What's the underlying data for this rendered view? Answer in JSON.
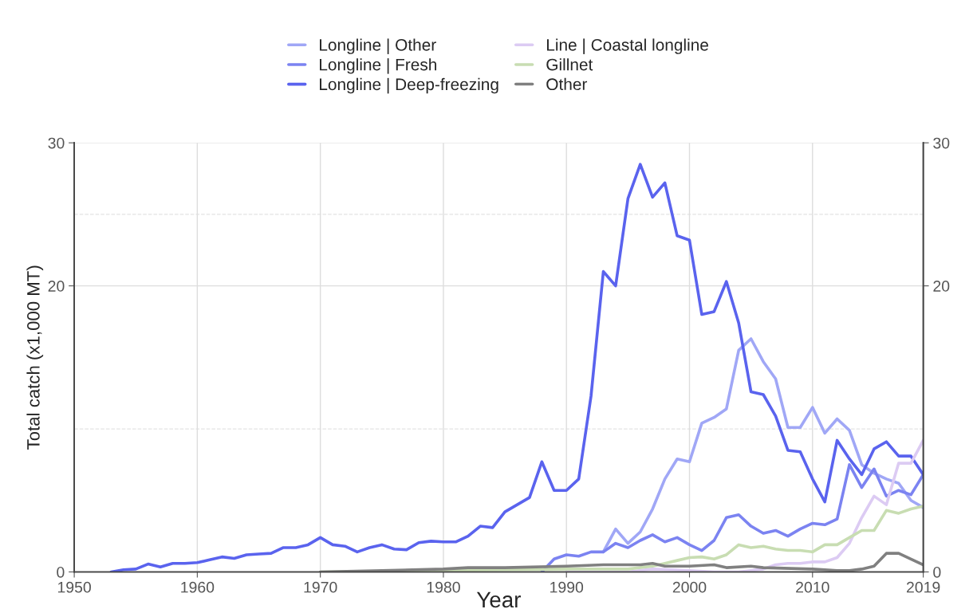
{
  "chart_data": {
    "type": "line",
    "xlabel": "Year",
    "ylabel": "Total catch (x1,000 MT)",
    "xlim": [
      1950,
      2019
    ],
    "xticks": [
      1950,
      1960,
      1970,
      1980,
      1990,
      2000,
      2010,
      2019
    ],
    "ylim": [
      0,
      30
    ],
    "yticks": [
      0,
      20,
      30
    ],
    "y2lim": [
      0,
      30
    ],
    "y2ticks": [
      0,
      20,
      30
    ],
    "grid": true,
    "legend": "top",
    "line_style": "solid",
    "ref_lines": [
      {
        "axis": "y",
        "value": 10,
        "color": "#e3e3e3",
        "line_style": "dashed"
      },
      {
        "axis": "y",
        "value": 25,
        "color": "#e3e3e3",
        "line_style": "dashed"
      }
    ],
    "series": [
      {
        "name": "Longline | Other",
        "color": "#a0a7f6",
        "x": [
          1993,
          1994,
          1995,
          1996,
          1997,
          1998,
          1999,
          2000,
          2001,
          2002,
          2003,
          2004,
          2005,
          2006,
          2007,
          2008,
          2009,
          2010,
          2011,
          2012,
          2013,
          2014,
          2015,
          2016,
          2017,
          2018,
          2019
        ],
        "values": [
          1.4,
          3.0,
          2.0,
          2.8,
          4.4,
          6.5,
          7.9,
          7.7,
          10.4,
          10.8,
          11.4,
          15.5,
          16.3,
          14.7,
          13.5,
          10.1,
          10.1,
          11.5,
          9.7,
          10.7,
          9.9,
          7.5,
          6.9,
          6.5,
          6.2,
          5.0,
          4.5
        ]
      },
      {
        "name": "Longline | Fresh",
        "color": "#7b83f1",
        "x": [
          1988,
          1989,
          1990,
          1991,
          1992,
          1993,
          1994,
          1995,
          1996,
          1997,
          1998,
          1999,
          2000,
          2001,
          2002,
          2003,
          2004,
          2005,
          2006,
          2007,
          2008,
          2009,
          2010,
          2011,
          2012,
          2013,
          2014,
          2015,
          2016,
          2017,
          2018,
          2019
        ],
        "values": [
          0,
          0.9,
          1.2,
          1.1,
          1.4,
          1.4,
          2.0,
          1.7,
          2.2,
          2.6,
          2.1,
          2.4,
          1.9,
          1.5,
          2.2,
          3.8,
          4.0,
          3.2,
          2.7,
          2.9,
          2.5,
          3.0,
          3.4,
          3.3,
          3.7,
          7.5,
          5.9,
          7.2,
          5.3,
          5.7,
          5.4,
          6.8
        ]
      },
      {
        "name": "Longline | Deep-freezing",
        "color": "#5a63ee",
        "x": [
          1953,
          1954,
          1955,
          1956,
          1957,
          1958,
          1959,
          1960,
          1961,
          1962,
          1963,
          1964,
          1965,
          1966,
          1967,
          1968,
          1969,
          1970,
          1971,
          1972,
          1973,
          1974,
          1975,
          1976,
          1977,
          1978,
          1979,
          1980,
          1981,
          1982,
          1983,
          1984,
          1985,
          1986,
          1987,
          1988,
          1989,
          1990,
          1991,
          1992,
          1993,
          1994,
          1995,
          1996,
          1997,
          1998,
          1999,
          2000,
          2001,
          2002,
          2003,
          2004,
          2005,
          2006,
          2007,
          2008,
          2009,
          2010,
          2011,
          2012,
          2013,
          2014,
          2015,
          2016,
          2017,
          2018,
          2019
        ],
        "values": [
          0,
          0.15,
          0.2,
          0.55,
          0.35,
          0.6,
          0.6,
          0.65,
          0.85,
          1.05,
          0.95,
          1.2,
          1.25,
          1.3,
          1.7,
          1.7,
          1.9,
          2.4,
          1.9,
          1.8,
          1.4,
          1.7,
          1.9,
          1.6,
          1.55,
          2.05,
          2.15,
          2.1,
          2.1,
          2.5,
          3.2,
          3.1,
          4.2,
          4.7,
          5.2,
          7.7,
          5.7,
          5.7,
          6.5,
          12.3,
          21.0,
          20.0,
          26.1,
          28.5,
          26.2,
          27.2,
          23.5,
          23.2,
          18.0,
          18.2,
          20.3,
          17.4,
          12.6,
          12.4,
          10.9,
          8.5,
          8.4,
          6.5,
          4.9,
          9.2,
          7.9,
          6.8,
          8.6,
          9.1,
          8.1,
          8.1,
          6.8
        ]
      },
      {
        "name": "Line | Coastal longline",
        "color": "#dccbf3",
        "x": [
          1990,
          1995,
          1997,
          2000,
          2002,
          2004,
          2005,
          2006,
          2007,
          2008,
          2009,
          2010,
          2011,
          2012,
          2013,
          2014,
          2015,
          2016,
          2017,
          2018,
          2019
        ],
        "values": [
          0,
          0,
          0.2,
          0.1,
          0,
          0,
          0.1,
          0.2,
          0.5,
          0.6,
          0.6,
          0.7,
          0.7,
          1.0,
          2.0,
          3.8,
          5.3,
          4.7,
          7.6,
          7.6,
          9.2
        ]
      },
      {
        "name": "Gillnet",
        "color": "#c8ddb2",
        "x": [
          1970,
          1985,
          1990,
          1995,
          1997,
          1998,
          1999,
          2000,
          2001,
          2002,
          2003,
          2004,
          2005,
          2006,
          2007,
          2008,
          2009,
          2010,
          2011,
          2012,
          2013,
          2014,
          2015,
          2016,
          2017,
          2018,
          2019
        ],
        "values": [
          0,
          0.15,
          0.2,
          0.2,
          0.4,
          0.6,
          0.8,
          1.0,
          1.05,
          0.9,
          1.2,
          1.9,
          1.7,
          1.8,
          1.6,
          1.5,
          1.5,
          1.4,
          1.9,
          1.9,
          2.4,
          2.9,
          2.9,
          4.3,
          4.1,
          4.4,
          4.6
        ]
      },
      {
        "name": "Other",
        "color": "#808080",
        "x": [
          1970,
          1975,
          1980,
          1982,
          1985,
          1990,
          1993,
          1996,
          1997,
          1998,
          2000,
          2002,
          2003,
          2005,
          2006,
          2010,
          2012,
          2013,
          2014,
          2015,
          2016,
          2017,
          2018,
          2019
        ],
        "values": [
          0,
          0.1,
          0.2,
          0.3,
          0.3,
          0.4,
          0.5,
          0.5,
          0.6,
          0.4,
          0.4,
          0.5,
          0.3,
          0.4,
          0.3,
          0.2,
          0.1,
          0.1,
          0.2,
          0.4,
          1.3,
          1.3,
          0.9,
          0.5
        ]
      }
    ]
  }
}
